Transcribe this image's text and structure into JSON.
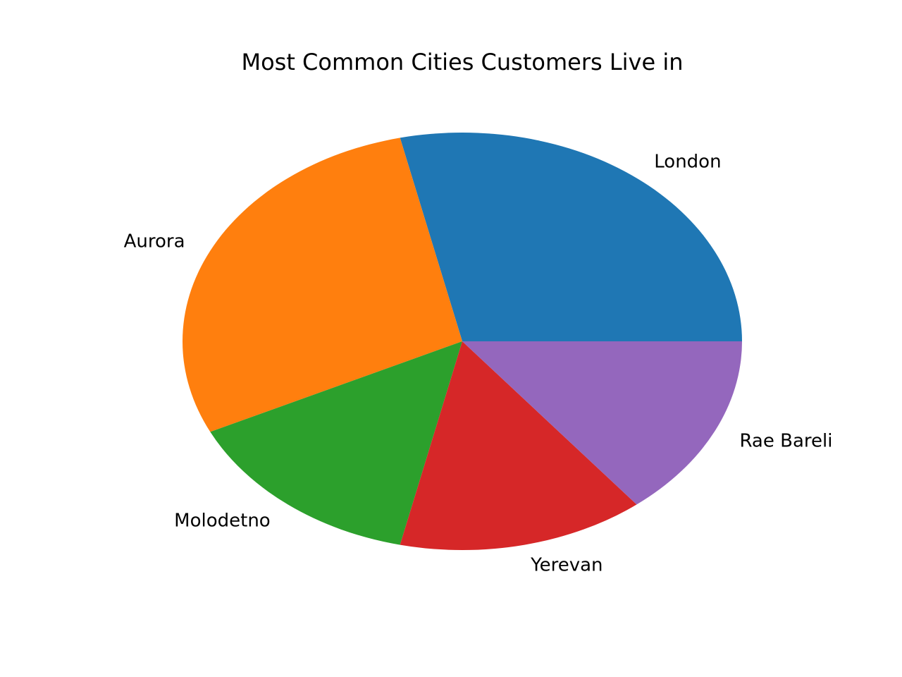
{
  "chart_data": {
    "type": "pie",
    "title": "Most Common Cities Customers Live in",
    "categories": [
      "London",
      "Aurora",
      "Molodetno",
      "Yerevan",
      "Rae Bareli"
    ],
    "values": [
      2,
      2,
      1,
      1,
      1
    ],
    "colors": [
      "#1f77b4",
      "#ff7f0e",
      "#2ca02c",
      "#d62728",
      "#9467bd"
    ],
    "start_angle_deg": 0,
    "direction": "counterclockwise",
    "legend": "none"
  }
}
